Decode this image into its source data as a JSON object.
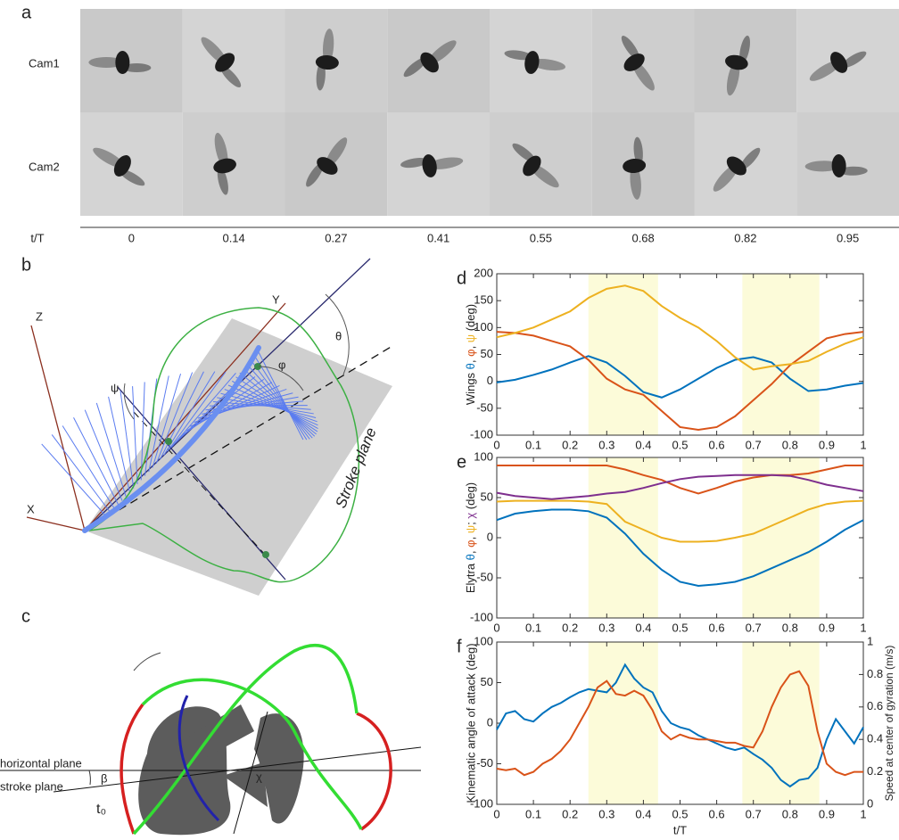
{
  "panel_a": {
    "label": "a",
    "cameras": [
      "Cam1",
      "Cam2"
    ],
    "axis_label": "t/T",
    "times": [
      0,
      0.14,
      0.27,
      0.41,
      0.55,
      0.68,
      0.82,
      0.95
    ]
  },
  "panel_b": {
    "label": "b",
    "z": "Z",
    "y": "Y",
    "x": "X",
    "theta": "θ",
    "phi": "φ",
    "psi": "ψ",
    "plane": "Stroke plane"
  },
  "panel_c": {
    "label": "c",
    "horizontal": "horizontal plane",
    "stroke": "stroke plane",
    "beta": "β",
    "t0": "t₀",
    "chi": "χ"
  },
  "chart_data": [
    {
      "type": "line",
      "panel": "d",
      "ylabel": [
        "Wings ",
        ", ",
        ", ",
        " (deg)"
      ],
      "x": [
        0,
        0.05,
        0.1,
        0.15,
        0.2,
        0.25,
        0.3,
        0.35,
        0.4,
        0.45,
        0.5,
        0.55,
        0.6,
        0.65,
        0.7,
        0.75,
        0.8,
        0.85,
        0.9,
        0.95,
        1
      ],
      "series": [
        {
          "name": "θ",
          "color": "#0072BD",
          "values": [
            -2,
            3,
            12,
            22,
            35,
            47,
            35,
            10,
            -20,
            -30,
            -15,
            5,
            25,
            40,
            45,
            35,
            5,
            -18,
            -15,
            -8,
            -3
          ]
        },
        {
          "name": "φ",
          "color": "#D95319",
          "values": [
            92,
            90,
            85,
            75,
            65,
            40,
            5,
            -15,
            -25,
            -55,
            -85,
            -90,
            -85,
            -65,
            -35,
            -5,
            30,
            55,
            80,
            88,
            92
          ]
        },
        {
          "name": "ψ",
          "color": "#EDB120",
          "values": [
            82,
            90,
            100,
            115,
            130,
            155,
            172,
            178,
            168,
            140,
            118,
            100,
            75,
            45,
            22,
            28,
            32,
            38,
            55,
            70,
            82
          ]
        }
      ],
      "xlim": [
        0,
        1
      ],
      "xticks": [
        0,
        0.1,
        0.2,
        0.3,
        0.4,
        0.5,
        0.6,
        0.7,
        0.8,
        0.9,
        1
      ],
      "ylim": [
        -100,
        200
      ],
      "yticks": [
        -100,
        -50,
        0,
        50,
        100,
        150,
        200
      ],
      "shaded": [
        [
          0.25,
          0.44
        ],
        [
          0.67,
          0.88
        ]
      ],
      "shade_color": "#fcfbd9"
    },
    {
      "type": "line",
      "panel": "e",
      "ylabel": [
        "Elytra ",
        ", ",
        ", ",
        "; ",
        " (deg)"
      ],
      "x": [
        0,
        0.05,
        0.1,
        0.15,
        0.2,
        0.25,
        0.3,
        0.35,
        0.4,
        0.45,
        0.5,
        0.55,
        0.6,
        0.65,
        0.7,
        0.75,
        0.8,
        0.85,
        0.9,
        0.95,
        1
      ],
      "series": [
        {
          "name": "θ",
          "color": "#0072BD",
          "values": [
            22,
            30,
            33,
            35,
            35,
            33,
            25,
            5,
            -20,
            -40,
            -55,
            -60,
            -58,
            -55,
            -48,
            -38,
            -28,
            -18,
            -5,
            10,
            22
          ]
        },
        {
          "name": "φ",
          "color": "#D95319",
          "values": [
            90,
            90,
            90,
            90,
            90,
            90,
            90,
            85,
            78,
            72,
            62,
            55,
            62,
            70,
            75,
            78,
            78,
            80,
            85,
            90,
            90
          ]
        },
        {
          "name": "ψ",
          "color": "#EDB120",
          "values": [
            45,
            46,
            46,
            46,
            46,
            45,
            42,
            20,
            10,
            0,
            -5,
            -5,
            -4,
            0,
            5,
            15,
            25,
            35,
            42,
            45,
            46
          ]
        },
        {
          "name": "χ",
          "color": "#7E2F8E",
          "values": [
            56,
            52,
            50,
            48,
            50,
            52,
            55,
            57,
            62,
            68,
            73,
            76,
            77,
            78,
            78,
            78,
            77,
            72,
            66,
            62,
            58
          ]
        }
      ],
      "xlim": [
        0,
        1
      ],
      "xticks": [
        0,
        0.1,
        0.2,
        0.3,
        0.4,
        0.5,
        0.6,
        0.7,
        0.8,
        0.9,
        1
      ],
      "ylim": [
        -100,
        100
      ],
      "yticks": [
        -100,
        -50,
        0,
        50,
        100
      ],
      "shaded": [
        [
          0.25,
          0.44
        ],
        [
          0.67,
          0.88
        ]
      ],
      "shade_color": "#fcfbd9"
    },
    {
      "type": "line",
      "panel": "f",
      "ylabel": "Kinematic angle of attack (deg)",
      "y2label": "Speed at center of gyration (m/s)",
      "xlabel": "t/T",
      "x": [
        0,
        0.025,
        0.05,
        0.075,
        0.1,
        0.125,
        0.15,
        0.175,
        0.2,
        0.225,
        0.25,
        0.275,
        0.3,
        0.325,
        0.35,
        0.375,
        0.4,
        0.425,
        0.45,
        0.475,
        0.5,
        0.525,
        0.55,
        0.575,
        0.6,
        0.625,
        0.65,
        0.675,
        0.7,
        0.725,
        0.75,
        0.775,
        0.8,
        0.825,
        0.85,
        0.875,
        0.9,
        0.925,
        0.95,
        0.975,
        1
      ],
      "series": [
        {
          "color": "#0072BD",
          "values": [
            -8,
            12,
            15,
            5,
            2,
            12,
            20,
            25,
            32,
            38,
            42,
            40,
            38,
            50,
            72,
            55,
            44,
            38,
            15,
            0,
            -5,
            -8,
            -15,
            -20,
            -25,
            -30,
            -33,
            -30,
            -38,
            -45,
            -55,
            -70,
            -78,
            -70,
            -68,
            -55,
            -20,
            5,
            -10,
            -25,
            -5
          ]
        },
        {
          "color": "#D95319",
          "axis": "y2",
          "values": [
            0.22,
            0.21,
            0.22,
            0.18,
            0.2,
            0.25,
            0.28,
            0.33,
            0.4,
            0.5,
            0.6,
            0.72,
            0.76,
            0.68,
            0.67,
            0.7,
            0.67,
            0.58,
            0.45,
            0.4,
            0.43,
            0.41,
            0.4,
            0.4,
            0.39,
            0.38,
            0.38,
            0.36,
            0.35,
            0.45,
            0.6,
            0.72,
            0.8,
            0.82,
            0.73,
            0.45,
            0.25,
            0.2,
            0.18,
            0.2,
            0.2
          ]
        }
      ],
      "xlim": [
        0,
        1
      ],
      "xticks": [
        0,
        0.1,
        0.2,
        0.3,
        0.4,
        0.5,
        0.6,
        0.7,
        0.8,
        0.9,
        1
      ],
      "ylim": [
        -100,
        100
      ],
      "yticks": [
        -100,
        -50,
        0,
        50,
        100
      ],
      "y2lim": [
        0,
        1
      ],
      "y2ticks": [
        0,
        0.2,
        0.4,
        0.6,
        0.8,
        1
      ],
      "shaded": [
        [
          0.25,
          0.44
        ],
        [
          0.67,
          0.88
        ]
      ],
      "shade_color": "#fcfbd9"
    }
  ]
}
